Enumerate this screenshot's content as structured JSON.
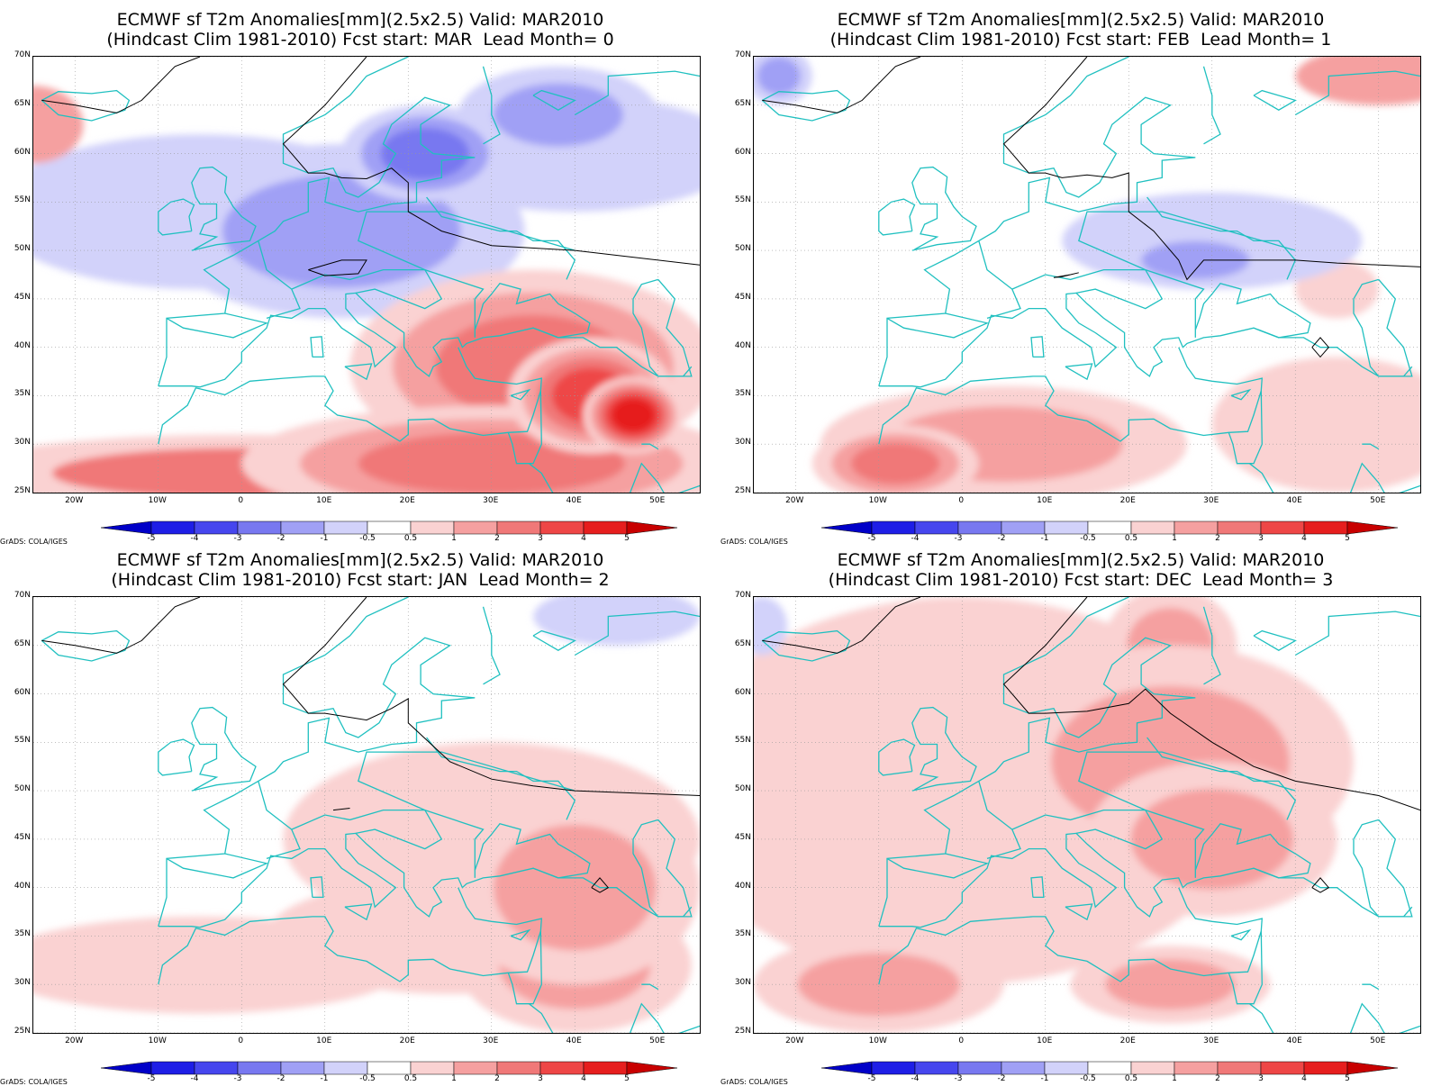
{
  "panels": [
    {
      "title1": "ECMWF sf T2m Anomalies[mm](2.5x2.5) Valid: MAR2010",
      "title2": "(Hindcast Clim 1981-2010) Fcst start: MAR  Lead Month= 0",
      "field_mean_anomaly": 0.6,
      "pattern": "cold-northwest-warm-southeast"
    },
    {
      "title1": "ECMWF sf T2m Anomalies[mm](2.5x2.5) Valid: MAR2010",
      "title2": "(Hindcast Clim 1981-2010) Fcst start: FEB  Lead Month= 1",
      "field_mean_anomaly": 0.6,
      "pattern": "weak-cold-east-warm-south"
    },
    {
      "title1": "ECMWF sf T2m Anomalies[mm](2.5x2.5) Valid: MAR2010",
      "title2": "(Hindcast Clim 1981-2010) Fcst start: JAN  Lead Month= 2",
      "field_mean_anomaly": 0.8,
      "pattern": "warm-southeast"
    },
    {
      "title1": "ECMWF sf T2m Anomalies[mm](2.5x2.5) Valid: MAR2010",
      "title2": "(Hindcast Clim 1981-2010) Fcst start: DEC  Lead Month= 3",
      "field_mean_anomaly": 1.0,
      "pattern": "warm-widespread"
    }
  ],
  "lat_labels": [
    "70N",
    "65N",
    "60N",
    "55N",
    "50N",
    "45N",
    "40N",
    "35N",
    "30N",
    "25N"
  ],
  "lon_labels": [
    "20W",
    "10W",
    "0",
    "10E",
    "20E",
    "30E",
    "40E",
    "50E"
  ],
  "colorbar": {
    "labels": [
      "-5",
      "-4",
      "-3",
      "-2",
      "-1",
      "-0.5",
      "0.5",
      "1",
      "2",
      "3",
      "4",
      "5"
    ],
    "colors": [
      "#0000c8",
      "#1e1ee6",
      "#4646ee",
      "#7878f0",
      "#a0a0f5",
      "#d2d2fa",
      "#ffffff",
      "#fad2d2",
      "#f5a0a0",
      "#f07878",
      "#ee4646",
      "#e61e1e",
      "#c80000"
    ]
  },
  "credit": "GrADS: COLA/IGES",
  "contour_color": "#000000",
  "coast_color": "#20c0c0"
}
